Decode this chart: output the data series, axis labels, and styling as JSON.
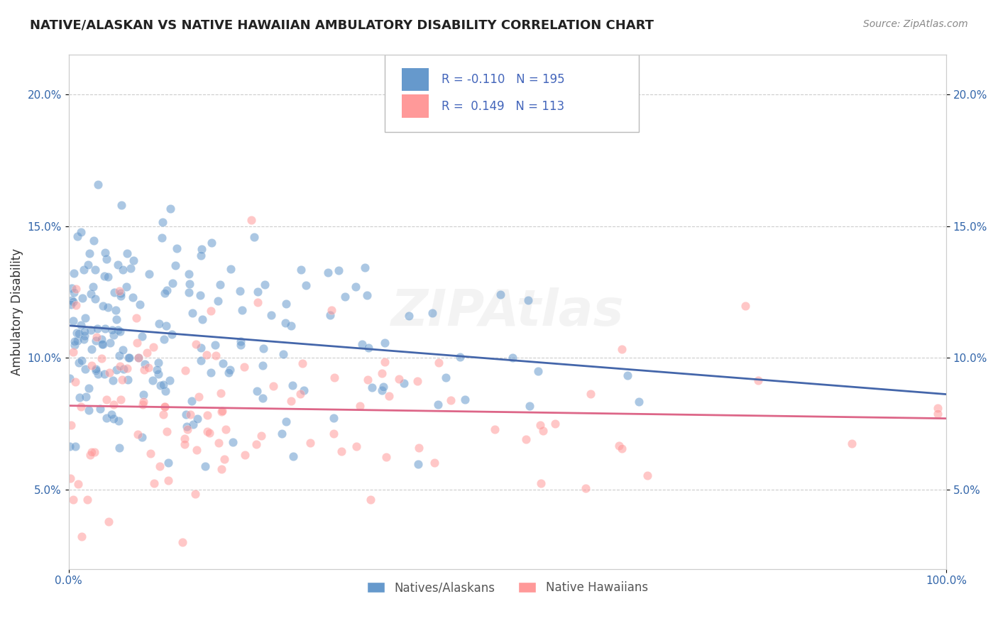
{
  "title": "NATIVE/ALASKAN VS NATIVE HAWAIIAN AMBULATORY DISABILITY CORRELATION CHART",
  "source": "Source: ZipAtlas.com",
  "ylabel": "Ambulatory Disability",
  "xlabel": "",
  "background_color": "#ffffff",
  "grid_color": "#cccccc",
  "blue_color": "#6699cc",
  "pink_color": "#ff9999",
  "blue_line_color": "#4466aa",
  "pink_line_color": "#dd6688",
  "blue_R": -0.11,
  "blue_N": 195,
  "pink_R": 0.149,
  "pink_N": 113,
  "xlim": [
    0.0,
    100.0
  ],
  "ylim": [
    2.0,
    21.5
  ],
  "yticks": [
    5.0,
    10.0,
    15.0,
    20.0
  ],
  "xticks": [
    0.0,
    100.0
  ],
  "title_color": "#222222",
  "legend_text_color": "#4466bb",
  "watermark": "ZIPAtlas",
  "seed": 42
}
